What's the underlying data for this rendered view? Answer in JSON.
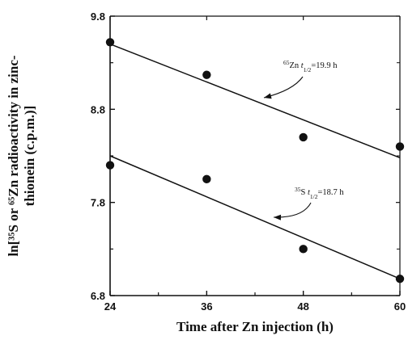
{
  "chart_data": {
    "type": "scatter",
    "xlabel": "Time after Zn injection (h)",
    "ylabel_line1": "ln[³⁵S or ⁶⁵Zn radioactivity in zinc-",
    "ylabel_line2": "thionein (c.p.m.)]",
    "xlim": [
      24,
      60
    ],
    "ylim": [
      6.8,
      9.8
    ],
    "xticks": [
      24,
      36,
      48,
      60
    ],
    "yticks": [
      6.8,
      7.8,
      8.8,
      9.8
    ],
    "ytick_labels": [
      "6.8",
      "7.8",
      "8.8",
      "9.8"
    ],
    "grid": false,
    "series": [
      {
        "id": "zn65",
        "x": [
          24,
          36,
          48,
          60
        ],
        "y": [
          9.52,
          9.17,
          8.5,
          8.4
        ],
        "fit": [
          [
            24,
            9.5
          ],
          [
            60,
            8.28
          ]
        ],
        "annotation": {
          "isotope_sup": "65",
          "isotope": "Zn",
          "t_label": "t",
          "t_sub": "1/2",
          "value": "=19.9 h"
        }
      },
      {
        "id": "s35",
        "x": [
          24,
          36,
          48,
          60
        ],
        "y": [
          8.2,
          8.05,
          7.3,
          6.98
        ],
        "fit": [
          [
            24,
            8.3
          ],
          [
            60,
            6.98
          ]
        ],
        "annotation": {
          "isotope_sup": "35",
          "isotope": "S",
          "t_label": "t",
          "t_sub": "1/2",
          "value": "=18.7 h"
        }
      }
    ]
  }
}
